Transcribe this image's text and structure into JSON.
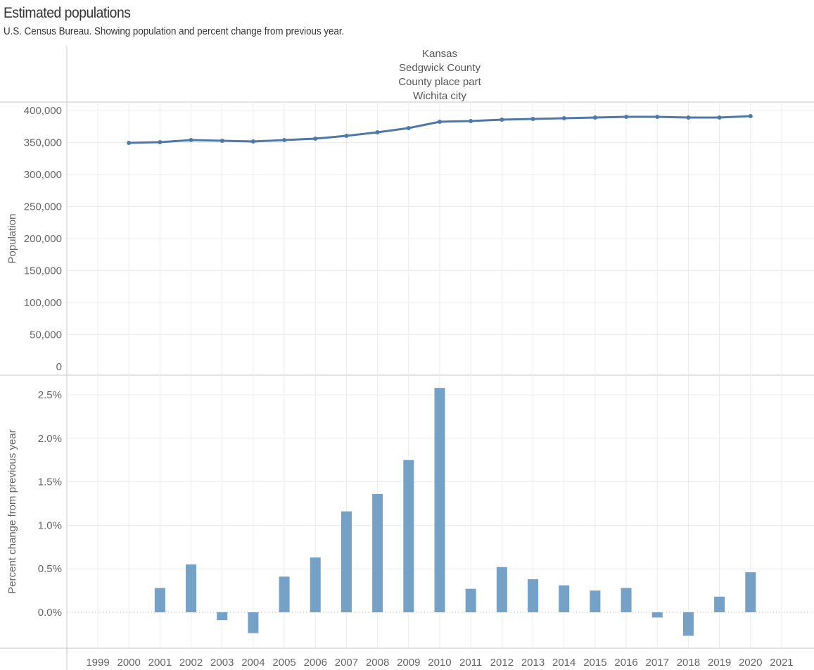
{
  "title": "Estimated populations",
  "subtitle": "U.S. Census Bureau. Showing population and percent change from previous year.",
  "header_lines": [
    "Kansas",
    "Sedgwick County",
    "County place part",
    "Wichita city"
  ],
  "colors": {
    "line": "#4e79a7",
    "bar": "#76a1c7",
    "grid": "#ececec",
    "axis": "#c8c8c8"
  },
  "chart_data": [
    {
      "type": "line",
      "ylabel": "Population",
      "ylim": [
        0,
        400000
      ],
      "yticks": [
        0,
        50000,
        100000,
        150000,
        200000,
        250000,
        300000,
        350000,
        400000
      ],
      "ytick_labels": [
        "0",
        "50,000",
        "100,000",
        "150,000",
        "200,000",
        "250,000",
        "300,000",
        "350,000",
        "400,000"
      ],
      "x": [
        2000,
        2001,
        2002,
        2003,
        2004,
        2005,
        2006,
        2007,
        2008,
        2009,
        2010,
        2011,
        2012,
        2013,
        2014,
        2015,
        2016,
        2017,
        2018,
        2019,
        2020
      ],
      "values": [
        349500,
        350500,
        353800,
        352700,
        351600,
        353800,
        356000,
        360400,
        365900,
        372500,
        382400,
        383500,
        385700,
        386800,
        387900,
        389000,
        390100,
        390100,
        389000,
        389000,
        391200
      ]
    },
    {
      "type": "bar",
      "ylabel": "Percent change from previous year",
      "ylim": [
        -0.4,
        2.75
      ],
      "yticks": [
        0,
        0.5,
        1.0,
        1.5,
        2.0,
        2.5
      ],
      "ytick_labels": [
        "0.0%",
        "0.5%",
        "1.0%",
        "1.5%",
        "2.0%",
        "2.5%"
      ],
      "x": [
        2001,
        2002,
        2003,
        2004,
        2005,
        2006,
        2007,
        2008,
        2009,
        2010,
        2011,
        2012,
        2013,
        2014,
        2015,
        2016,
        2017,
        2018,
        2019,
        2020
      ],
      "values": [
        0.28,
        0.55,
        -0.09,
        -0.24,
        0.41,
        0.63,
        1.16,
        1.36,
        1.75,
        2.58,
        0.27,
        0.52,
        0.38,
        0.31,
        0.25,
        0.28,
        -0.06,
        -0.27,
        0.18,
        0.46
      ]
    }
  ],
  "x_axis": {
    "categories": [
      "1999",
      "2000",
      "2001",
      "2002",
      "2003",
      "2004",
      "2005",
      "2006",
      "2007",
      "2008",
      "2009",
      "2010",
      "2011",
      "2012",
      "2013",
      "2014",
      "2015",
      "2016",
      "2017",
      "2018",
      "2019",
      "2020",
      "2021"
    ]
  }
}
